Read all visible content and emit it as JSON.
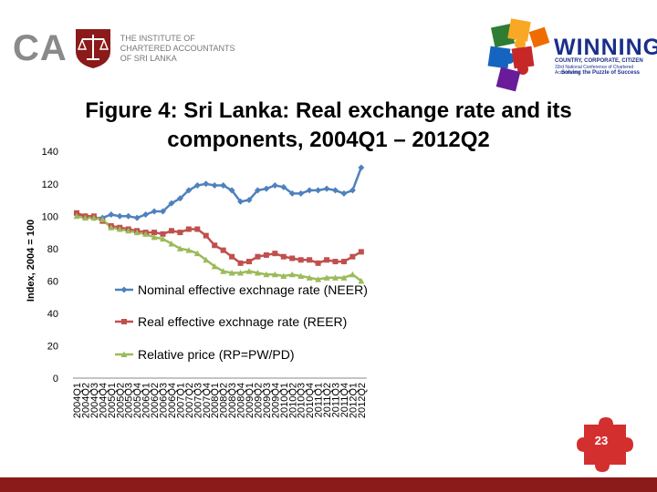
{
  "header": {
    "logo_ca": "CA",
    "logo_ca_lines": [
      "THE INSTITUTE OF",
      "CHARTERED ACCOUNTANTS",
      "OF SRI LANKA"
    ],
    "winning": "WINNING",
    "winning_sub1": "COUNTRY, CORPORATE, CITIZEN",
    "winning_sub2": "33rd National Conference of Chartered Accountants",
    "winning_sub3": "Solving the Puzzle of Success"
  },
  "slide": {
    "page_number": "23"
  },
  "colors": {
    "neer": "#4f81bd",
    "reer": "#c0504d",
    "rp": "#9bbb59",
    "bar": "#8b1a1a"
  },
  "chart_data": {
    "type": "line",
    "title": "Figure 4:   Sri Lanka: Real exchange rate and its components, 2004Q1 – 2012Q2",
    "xlabel": "",
    "ylabel": "Index, 2004 = 100",
    "ylim": [
      0,
      140
    ],
    "yticks": [
      0,
      20,
      40,
      60,
      80,
      100,
      120,
      140
    ],
    "categories": [
      "2004Q1",
      "2004Q2",
      "2004Q3",
      "2004Q4",
      "2005Q1",
      "2005Q2",
      "2005Q3",
      "2005Q4",
      "2006Q1",
      "2006Q2",
      "2006Q3",
      "2006Q4",
      "2007Q1",
      "2007Q2",
      "2007Q3",
      "2007Q4",
      "2008Q1",
      "2008Q2",
      "2008Q3",
      "2008Q4",
      "2009Q1",
      "2009Q2",
      "2009Q3",
      "2009Q4",
      "2010Q1",
      "2010Q2",
      "2010Q3",
      "2010Q4",
      "2011Q1",
      "2011Q2",
      "2011Q3",
      "2011Q4",
      "2012Q1",
      "2012Q2"
    ],
    "series": [
      {
        "name": "Nominal effective exchnage rate (NEER)",
        "marker": "diamond",
        "values": [
          101,
          100,
          99,
          99,
          101,
          100,
          100,
          99,
          101,
          103,
          103,
          108,
          111,
          116,
          119,
          120,
          119,
          119,
          116,
          109,
          110,
          116,
          117,
          119,
          118,
          114,
          114,
          116,
          116,
          117,
          116,
          114,
          116,
          130
        ]
      },
      {
        "name": "Real effective exchnage rate (REER)",
        "marker": "square",
        "values": [
          102,
          100,
          100,
          97,
          94,
          93,
          92,
          91,
          90,
          90,
          89,
          91,
          90,
          92,
          92,
          88,
          82,
          79,
          75,
          71,
          72,
          75,
          76,
          77,
          75,
          74,
          73,
          73,
          71,
          73,
          72,
          72,
          75,
          78
        ]
      },
      {
        "name": "Relative price (RP=PW/PD)",
        "marker": "triangle",
        "values": [
          100,
          99,
          99,
          98,
          93,
          92,
          91,
          90,
          89,
          87,
          86,
          83,
          80,
          79,
          77,
          73,
          69,
          66,
          65,
          65,
          66,
          65,
          64,
          64,
          63,
          64,
          63,
          62,
          61,
          62,
          62,
          62,
          64,
          60
        ]
      }
    ],
    "legend_position": "center"
  }
}
